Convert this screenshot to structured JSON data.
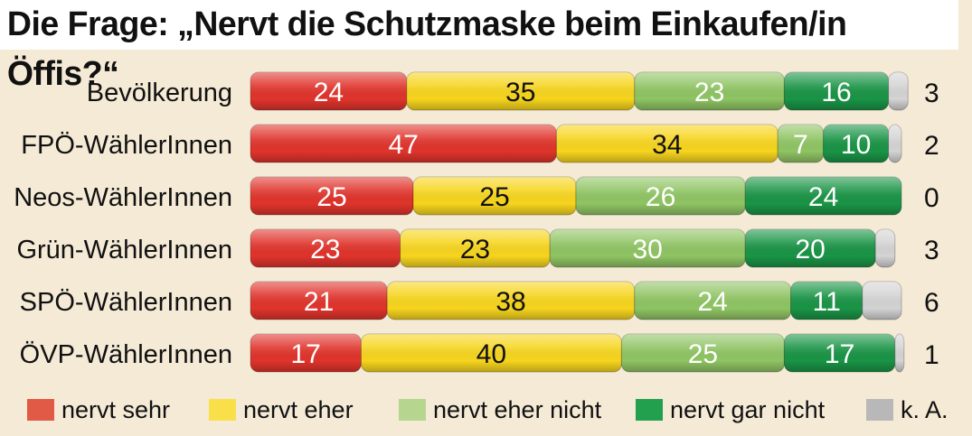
{
  "title": "Die Frage: „Nervt die Schutzmaske beim Einkaufen/in Öffis?“",
  "chart_data": {
    "type": "bar",
    "orientation": "horizontal",
    "stacked": true,
    "title": "Die Frage: „Nervt die Schutzmaske beim Einkaufen/in Öffis?“",
    "categories": [
      "Bevölkerung",
      "FPÖ-WählerInnen",
      "Neos-WählerInnen",
      "Grün-WählerInnen",
      "SPÖ-WählerInnen",
      "ÖVP-WählerInnen"
    ],
    "unit": "%",
    "xlim": [
      0,
      100
    ],
    "series": [
      {
        "name": "nervt sehr",
        "color": "#e0342c",
        "values": [
          24,
          47,
          25,
          23,
          21,
          17
        ]
      },
      {
        "name": "nervt eher",
        "color": "#f7d51e",
        "values": [
          35,
          34,
          25,
          23,
          38,
          40
        ]
      },
      {
        "name": "nervt eher nicht",
        "color": "#8fc463",
        "values": [
          23,
          7,
          26,
          30,
          24,
          25
        ]
      },
      {
        "name": "nervt gar nicht",
        "color": "#1a9446",
        "values": [
          16,
          10,
          24,
          20,
          11,
          17
        ]
      },
      {
        "name": "k. A.",
        "color": "#d4d4d4",
        "values": [
          3,
          2,
          0,
          3,
          6,
          1
        ]
      }
    ]
  },
  "legend": [
    {
      "label": "nervt sehr",
      "color": "#e05a45"
    },
    {
      "label": "nervt eher",
      "color": "#f9e04a"
    },
    {
      "label": "nervt eher nicht",
      "color": "#b6d68f"
    },
    {
      "label": "nervt gar nicht",
      "color": "#22a04e"
    },
    {
      "label": "k. A.",
      "color": "#b8b8b8"
    }
  ]
}
